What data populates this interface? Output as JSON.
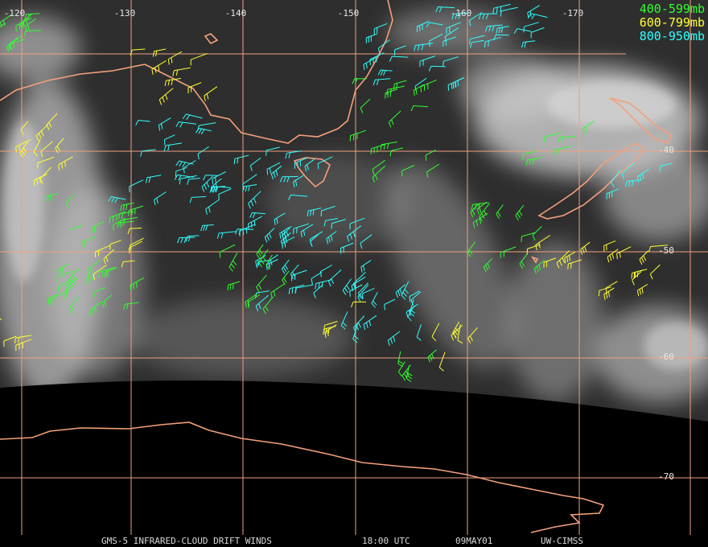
{
  "longitude_labels": [
    "-120",
    "-130",
    "-140",
    "-150",
    "-160",
    "-170"
  ],
  "latitude_labels": [
    "-40",
    "-50",
    "-60",
    "-70"
  ],
  "legend": [
    "400-599mb",
    "600-799mb",
    "800-950mb"
  ],
  "footer": {
    "product": "GMS-5 INFRARED-CLOUD DRIFT WINDS",
    "time": "18:00 UTC",
    "date": "09MAY01",
    "source": "UW-CIMSS"
  }
}
